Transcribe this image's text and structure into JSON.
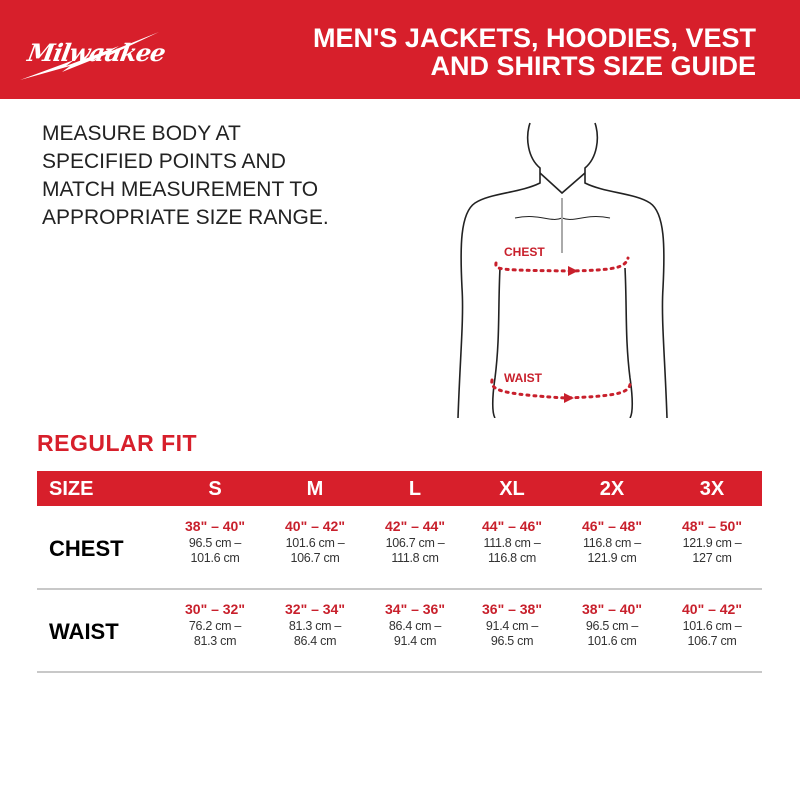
{
  "header": {
    "brand": "Milwaukee",
    "title_line1": "MEN'S JACKETS, HOODIES, VEST",
    "title_line2": "AND SHIRTS SIZE GUIDE",
    "color": "#d71f2b"
  },
  "instructions": "MEASURE BODY AT SPECIFIED POINTS AND MATCH MEASUREMENT TO APPROPRIATE SIZE RANGE.",
  "figure": {
    "chest_label": "CHEST",
    "waist_label": "WAIST"
  },
  "fit_title": "REGULAR FIT",
  "table": {
    "headers": [
      "SIZE",
      "S",
      "M",
      "L",
      "XL",
      "2X",
      "3X"
    ],
    "rows": [
      {
        "label": "CHEST",
        "cells": [
          {
            "in": "38\" – 40\"",
            "cm1": "96.5 cm –",
            "cm2": "101.6 cm"
          },
          {
            "in": "40\" – 42\"",
            "cm1": "101.6 cm –",
            "cm2": "106.7 cm"
          },
          {
            "in": "42\" – 44\"",
            "cm1": "106.7 cm –",
            "cm2": "111.8 cm"
          },
          {
            "in": "44\" – 46\"",
            "cm1": "111.8 cm –",
            "cm2": "116.8 cm"
          },
          {
            "in": "46\" – 48\"",
            "cm1": "116.8 cm –",
            "cm2": "121.9 cm"
          },
          {
            "in": "48\" – 50\"",
            "cm1": "121.9 cm –",
            "cm2": "127 cm"
          }
        ]
      },
      {
        "label": "WAIST",
        "cells": [
          {
            "in": "30\" – 32\"",
            "cm1": "76.2 cm –",
            "cm2": "81.3 cm"
          },
          {
            "in": "32\" – 34\"",
            "cm1": "81.3 cm –",
            "cm2": "86.4 cm"
          },
          {
            "in": "34\" – 36\"",
            "cm1": "86.4 cm –",
            "cm2": "91.4 cm"
          },
          {
            "in": "36\" – 38\"",
            "cm1": "91.4 cm –",
            "cm2": "96.5 cm"
          },
          {
            "in": "38\" – 40\"",
            "cm1": "96.5 cm –",
            "cm2": "101.6 cm"
          },
          {
            "in": "40\" – 42\"",
            "cm1": "101.6 cm –",
            "cm2": "106.7 cm"
          }
        ]
      }
    ]
  }
}
